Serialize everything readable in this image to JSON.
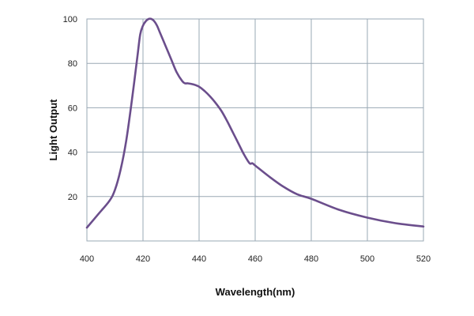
{
  "chart_data": {
    "type": "line",
    "title": "",
    "xlabel": "Wavelength(nm)",
    "ylabel": "Light Output",
    "xlim": [
      400,
      520
    ],
    "ylim": [
      0,
      100
    ],
    "x_ticks": [
      400,
      420,
      440,
      460,
      480,
      500,
      520
    ],
    "y_ticks": [
      20,
      40,
      60,
      80,
      100
    ],
    "grid": true,
    "series": [
      {
        "color": "#6b4e8c",
        "x": [
          400,
          404,
          408,
          410,
          412,
          414,
          416,
          418,
          419,
          420,
          421,
          422,
          423,
          424,
          425,
          426,
          428,
          430,
          432,
          434,
          435,
          436,
          438,
          440,
          442,
          444,
          446,
          448,
          450,
          452,
          454,
          456,
          458,
          459,
          460,
          465,
          470,
          475,
          480,
          490,
          500,
          510,
          520
        ],
        "y": [
          6,
          12,
          18,
          23,
          32,
          45,
          63,
          83,
          93,
          97,
          99,
          100,
          100,
          99,
          97,
          94,
          88,
          82,
          76,
          72,
          71,
          71,
          70.5,
          69.5,
          67.5,
          65,
          62,
          58.5,
          54,
          49,
          44,
          39,
          35,
          35,
          34,
          29,
          24.5,
          21,
          19,
          14,
          10.5,
          8,
          6.5
        ]
      }
    ]
  }
}
